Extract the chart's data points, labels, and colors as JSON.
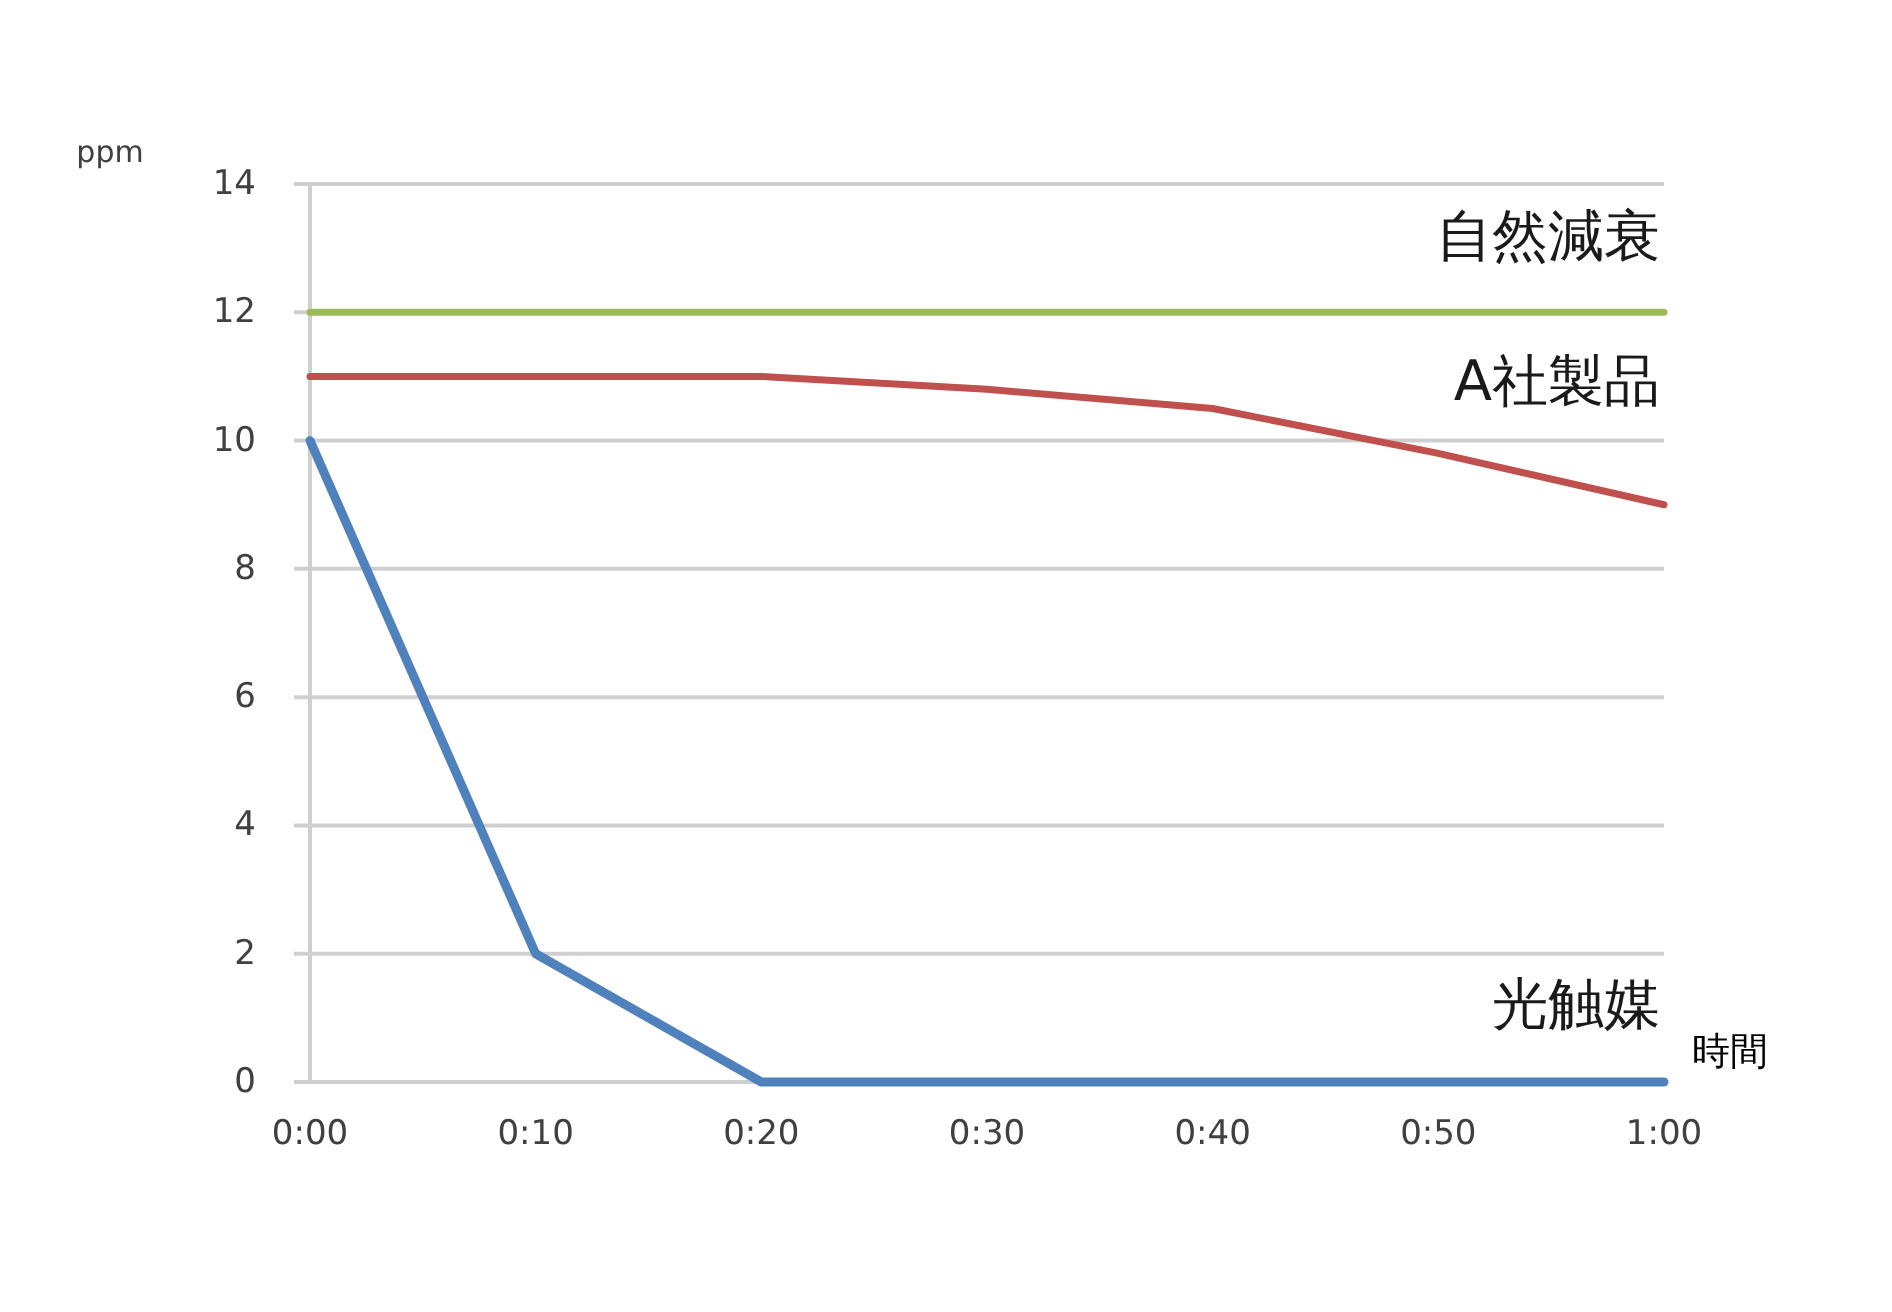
{
  "chart_data": {
    "type": "line",
    "ylabel": "ppm",
    "xlabel": "時間",
    "categories": [
      "0:00",
      "0:10",
      "0:20",
      "0:30",
      "0:40",
      "0:50",
      "1:00"
    ],
    "ylim": [
      0,
      14
    ],
    "yticks": [
      0,
      2,
      4,
      6,
      8,
      10,
      12,
      14
    ],
    "grid": "y",
    "series": [
      {
        "name": "自然減衰",
        "color": "#9bbb59",
        "values": [
          12,
          12,
          12,
          12,
          12,
          12,
          12
        ]
      },
      {
        "name": "A社製品",
        "color": "#c0504d",
        "values": [
          11,
          11,
          11,
          10.8,
          10.5,
          9.8,
          9
        ]
      },
      {
        "name": "光触媒",
        "color": "#4f81bd",
        "values": [
          10,
          2,
          0,
          0,
          0,
          0,
          0
        ]
      }
    ]
  }
}
